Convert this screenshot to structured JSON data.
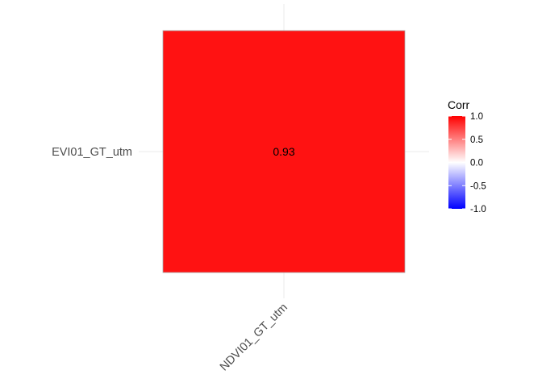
{
  "chart_data": {
    "type": "heatmap",
    "x_categories": [
      "NDVI01_GT_utm"
    ],
    "y_categories": [
      "EVI01_GT_utm"
    ],
    "cells": [
      {
        "x": "NDVI01_GT_utm",
        "y": "EVI01_GT_utm",
        "value": 0.93,
        "label": "0.93"
      }
    ],
    "legend": {
      "title": "Corr",
      "placement": "right",
      "range": [
        -1.0,
        1.0
      ],
      "ticks": [
        1.0,
        0.5,
        0.0,
        -0.5,
        -1.0
      ],
      "tick_labels": [
        "1.0",
        "0.5",
        "0.0",
        "-0.5",
        "-1.0"
      ]
    },
    "colors": {
      "low": "#0000ff",
      "mid": "#ffffff",
      "high": "#ff0000"
    },
    "grid": true
  }
}
